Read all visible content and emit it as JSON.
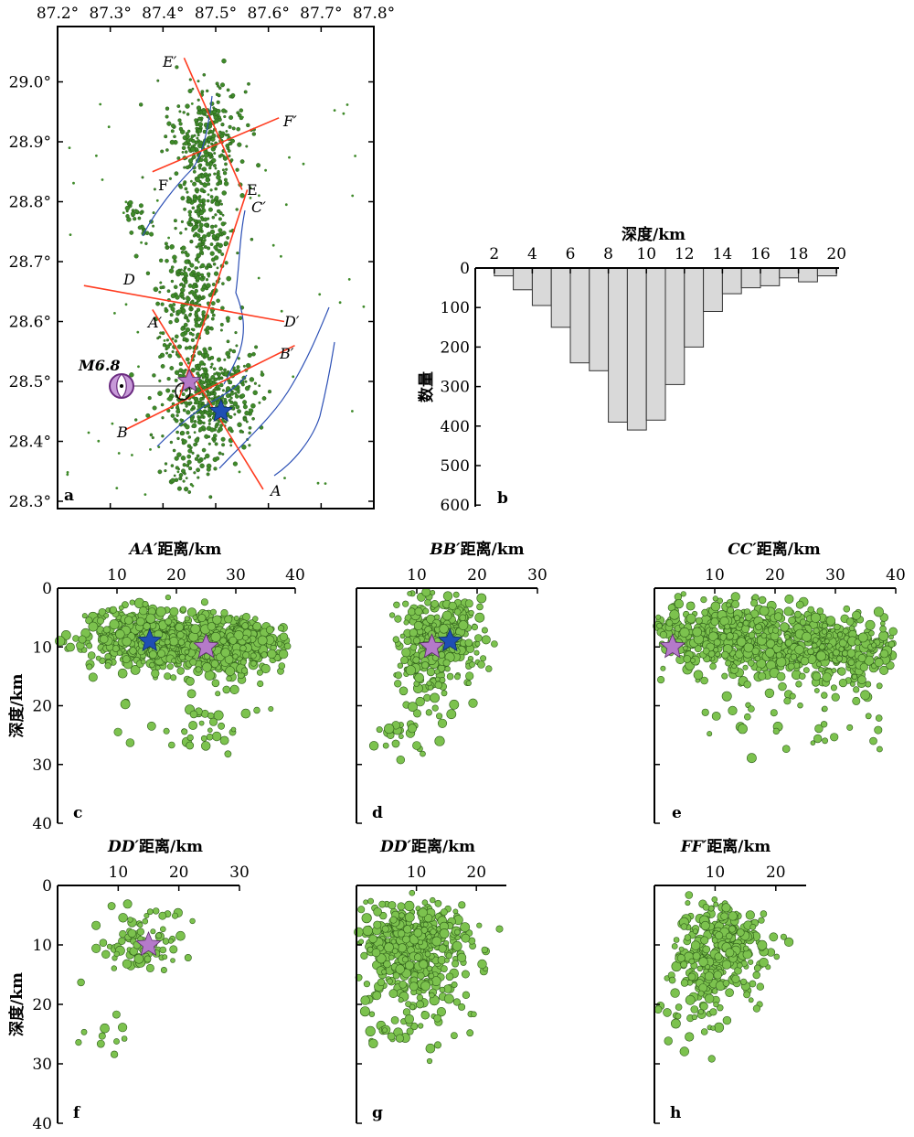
{
  "chart_data": [
    {
      "panel": "a",
      "type": "scatter",
      "x_ticks": [
        "87.2°",
        "87.3°",
        "87.4°",
        "87.5°",
        "87.6°",
        "87.7°",
        "87.8°"
      ],
      "y_ticks": [
        "29.0°",
        "28.9°",
        "28.8°",
        "28.7°",
        "28.6°",
        "28.5°",
        "28.4°",
        "28.3°"
      ],
      "xlim": [
        87.2,
        87.8
      ],
      "ylim": [
        28.3,
        29.05
      ],
      "mainshock_label": "M6.8",
      "mainshock": {
        "lon": 87.45,
        "lat": 28.5
      },
      "secondary_event": {
        "lon": 87.51,
        "lat": 28.45
      },
      "profiles": [
        {
          "start": "A",
          "end": "A′",
          "start_pt": [
            87.59,
            28.32
          ],
          "end_pt": [
            87.38,
            28.62
          ]
        },
        {
          "start": "B",
          "end": "B′",
          "start_pt": [
            87.33,
            28.42
          ],
          "end_pt": [
            87.65,
            28.56
          ]
        },
        {
          "start": "C",
          "end": "C′",
          "start_pt": [
            87.43,
            28.47
          ],
          "end_pt": [
            87.56,
            28.82
          ]
        },
        {
          "start": "D",
          "end": "D′",
          "start_pt": [
            87.25,
            28.66
          ],
          "end_pt": [
            87.63,
            28.6
          ]
        },
        {
          "start": "E",
          "end": "E′",
          "start_pt": [
            87.55,
            28.82
          ],
          "end_pt": [
            87.44,
            29.04
          ]
        },
        {
          "start": "F",
          "end": "F′",
          "start_pt": [
            87.38,
            28.85
          ],
          "end_pt": [
            87.62,
            28.94
          ]
        }
      ],
      "panel_label": "a"
    },
    {
      "panel": "b",
      "type": "bar",
      "title": "深度/km",
      "ylabel": "数量",
      "x_ticks": [
        "2",
        "4",
        "6",
        "8",
        "10",
        "12",
        "14",
        "16",
        "18",
        "20"
      ],
      "y_ticks": [
        "0",
        "100",
        "200",
        "300",
        "400",
        "500",
        "600"
      ],
      "xlim": [
        1,
        21
      ],
      "ylim": [
        0,
        600
      ],
      "bin_starts": [
        1,
        2,
        3,
        4,
        5,
        6,
        7,
        8,
        9,
        10,
        11,
        12,
        13,
        14,
        15,
        16,
        17,
        18,
        19,
        20
      ],
      "values": [
        0,
        20,
        55,
        95,
        150,
        240,
        260,
        390,
        410,
        385,
        295,
        200,
        110,
        65,
        50,
        45,
        25,
        35,
        20,
        0
      ],
      "panel_label": "b"
    },
    {
      "panel": "c",
      "type": "scatter",
      "title_prefix": "AA′",
      "title_suffix": "距离/km",
      "ylabel": "深度/km",
      "x_ticks": [
        "10",
        "20",
        "30",
        "40"
      ],
      "y_ticks": [
        "0",
        "10",
        "20",
        "30",
        "40"
      ],
      "xlim": [
        0,
        40
      ],
      "ylim": [
        0,
        40
      ],
      "main_stars": [
        {
          "x": 25,
          "y": 10
        }
      ],
      "blue_stars": [
        {
          "x": 15.5,
          "y": 9
        }
      ],
      "panel_label": "c"
    },
    {
      "panel": "d",
      "type": "scatter",
      "title_prefix": "BB′",
      "title_suffix": "距离/km",
      "x_ticks": [
        "10",
        "20",
        "30"
      ],
      "xlim": [
        0,
        30
      ],
      "ylim": [
        0,
        40
      ],
      "main_stars": [
        {
          "x": 12.5,
          "y": 10
        }
      ],
      "blue_stars": [
        {
          "x": 15.5,
          "y": 9
        }
      ],
      "panel_label": "d"
    },
    {
      "panel": "e",
      "type": "scatter",
      "title_prefix": "CC′",
      "title_suffix": "距离/km",
      "x_ticks": [
        "10",
        "20",
        "30",
        "40"
      ],
      "xlim": [
        0,
        40
      ],
      "ylim": [
        0,
        40
      ],
      "main_stars": [
        {
          "x": 3,
          "y": 10
        }
      ],
      "blue_stars": [],
      "panel_label": "e"
    },
    {
      "panel": "f",
      "type": "scatter",
      "title_prefix": "DD′",
      "title_suffix": "距离/km",
      "ylabel": "深度/km",
      "x_ticks": [
        "10",
        "20",
        "30"
      ],
      "y_ticks": [
        "0",
        "10",
        "20",
        "30",
        "40"
      ],
      "xlim": [
        0,
        30
      ],
      "ylim": [
        0,
        40
      ],
      "main_stars": [
        {
          "x": 15,
          "y": 10
        }
      ],
      "blue_stars": [],
      "panel_label": "f"
    },
    {
      "panel": "g",
      "type": "scatter",
      "title_prefix": "DD′",
      "title_suffix": "距离/km",
      "x_ticks": [
        "10",
        "20"
      ],
      "xlim": [
        0,
        25
      ],
      "ylim": [
        0,
        40
      ],
      "main_stars": [],
      "blue_stars": [],
      "panel_label": "g"
    },
    {
      "panel": "h",
      "type": "scatter",
      "title_prefix": "FF′",
      "title_suffix": "距离/km",
      "x_ticks": [
        "10",
        "20"
      ],
      "xlim": [
        0,
        25
      ],
      "ylim": [
        0,
        40
      ],
      "main_stars": [],
      "blue_stars": [],
      "panel_label": "h"
    }
  ],
  "colors": {
    "quake_fill": "#7cc24e",
    "quake_edge": "#2f5e1a",
    "map_dot": "#3f8a2a",
    "profile_line": "#ff3b1f",
    "fault_line": "#2b4fb5",
    "mainshock_star": "#b57ac9",
    "blue_star": "#1f4fb4",
    "hist_bar": "#d9d9d9",
    "hist_edge": "#333333"
  }
}
